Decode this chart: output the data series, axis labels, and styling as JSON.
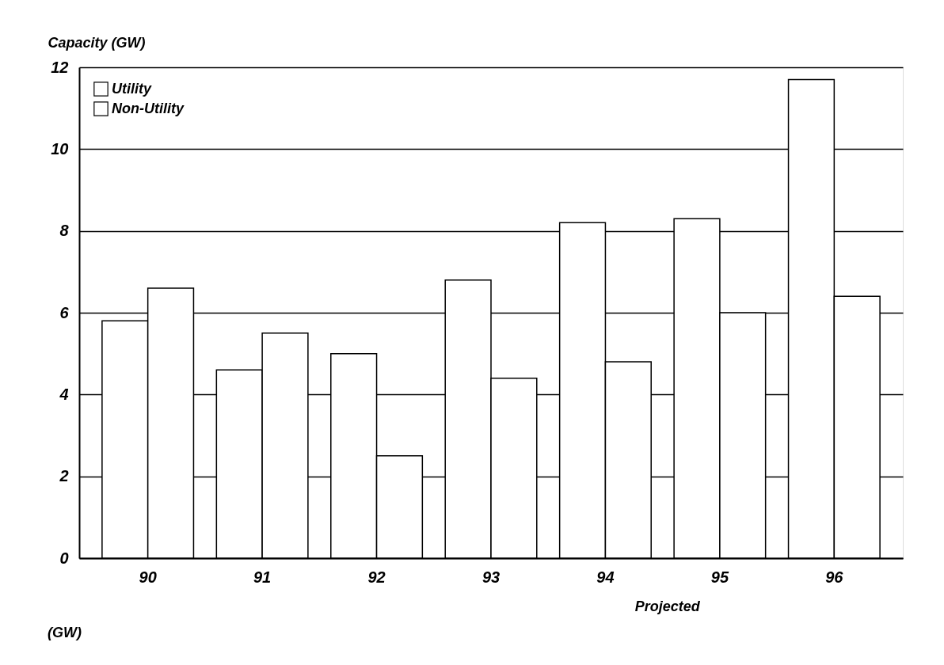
{
  "chart_data": {
    "type": "bar",
    "ylabel": "Capacity (GW)",
    "categories": [
      "90",
      "91",
      "92",
      "93",
      "94",
      "95",
      "96"
    ],
    "series": [
      {
        "name": "Utility",
        "color": "#ffffff",
        "values": [
          5.8,
          4.6,
          5.0,
          6.8,
          8.2,
          8.3,
          11.7
        ]
      },
      {
        "name": "Non-Utility",
        "color": "#ffffff",
        "values": [
          6.6,
          5.5,
          2.5,
          4.4,
          4.8,
          6.0,
          6.4
        ]
      }
    ],
    "ylim": [
      0,
      12
    ],
    "yticks": [
      0,
      2,
      4,
      6,
      8,
      10,
      12
    ],
    "grid": "y",
    "legend": "top left",
    "annotations": [
      "Projected",
      "(GW)"
    ]
  }
}
